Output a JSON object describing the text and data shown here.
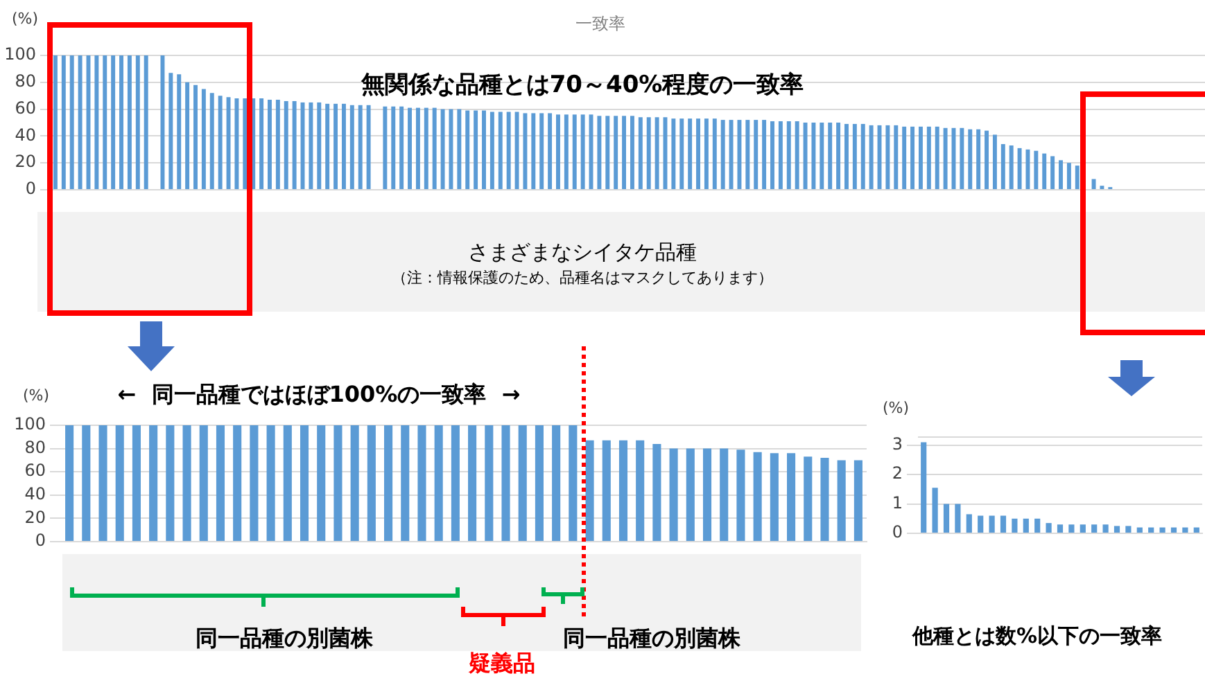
{
  "chart_data": [
    {
      "type": "bar",
      "title": "一致率",
      "ylabel": "(%)",
      "categories": [
        null,
        null,
        null,
        null,
        null,
        null,
        null,
        null,
        null,
        null,
        null,
        null,
        null,
        null,
        null,
        null,
        null,
        null,
        null,
        null,
        null,
        null,
        null,
        null,
        null,
        null,
        null,
        null,
        null,
        null,
        null,
        null,
        null,
        null,
        null,
        null,
        null,
        null,
        null,
        null,
        null,
        null,
        null,
        null,
        null,
        null,
        null,
        null,
        null,
        null,
        null,
        null,
        null,
        null,
        null,
        null,
        null,
        null,
        null,
        null,
        null,
        null,
        null,
        null,
        null,
        null,
        null,
        null,
        null,
        null,
        null,
        null,
        null,
        null,
        null,
        null,
        null,
        null,
        null,
        null,
        null,
        null,
        null,
        null,
        null,
        null,
        null,
        null,
        null,
        null,
        null,
        null,
        null,
        null,
        null,
        null,
        null,
        null,
        null,
        null,
        null,
        null,
        null,
        null,
        null,
        null,
        null,
        null,
        null,
        null,
        null,
        null,
        null,
        null,
        null,
        null,
        null,
        null,
        null,
        null,
        null,
        null,
        null,
        null,
        null,
        null,
        null,
        null,
        null,
        null,
        null,
        null,
        null,
        null,
        null,
        null,
        null,
        null,
        null,
        null
      ],
      "values": [
        100,
        100,
        100,
        100,
        100,
        100,
        100,
        100,
        100,
        100,
        100,
        100,
        null,
        100,
        87,
        86,
        80,
        78,
        75,
        72,
        70,
        69,
        68,
        68,
        68,
        68,
        67,
        67,
        66,
        66,
        65,
        65,
        65,
        64,
        64,
        64,
        63,
        63,
        63,
        null,
        62,
        62,
        62,
        61,
        61,
        61,
        61,
        60,
        60,
        60,
        59,
        59,
        59,
        58,
        58,
        58,
        58,
        57,
        57,
        57,
        57,
        56,
        56,
        56,
        56,
        56,
        55,
        55,
        55,
        55,
        55,
        54,
        54,
        54,
        54,
        53,
        53,
        53,
        53,
        53,
        53,
        52,
        52,
        52,
        52,
        52,
        52,
        51,
        51,
        51,
        51,
        50,
        50,
        50,
        50,
        50,
        49,
        49,
        49,
        48,
        48,
        48,
        48,
        47,
        47,
        47,
        47,
        47,
        46,
        46,
        46,
        45,
        45,
        44,
        41,
        34,
        33,
        31,
        30,
        29,
        27,
        25,
        22,
        20,
        18,
        null,
        8,
        3,
        2,
        null,
        0,
        0,
        0,
        0,
        0,
        0,
        0,
        0,
        0,
        0
      ],
      "color": "#5b9bd5",
      "ylim": [
        0,
        100
      ],
      "yticks": [
        0,
        20,
        40,
        60,
        80,
        100
      ],
      "grid": "y",
      "annotations": [
        "無関係な品種とは70～40%程度の一致率",
        "さまざまなシイタケ品種",
        "（注：情報保護のため、品種名はマスクしてあります）"
      ]
    },
    {
      "type": "bar",
      "title": "←  同一品種ではほぼ100%の一致率  →",
      "ylabel": "(%)",
      "categories": [
        null,
        null,
        null,
        null,
        null,
        null,
        null,
        null,
        null,
        null,
        null,
        null,
        null,
        null,
        null,
        null,
        null,
        null,
        null,
        null,
        null,
        null,
        null,
        null,
        null,
        null,
        null,
        null,
        null,
        null,
        null,
        null,
        null,
        null,
        null,
        null,
        null,
        null,
        null,
        null,
        null,
        null,
        null,
        null,
        null,
        null,
        null,
        null
      ],
      "values": [
        100,
        100,
        100,
        100,
        100,
        100,
        100,
        100,
        100,
        100,
        100,
        100,
        100,
        100,
        100,
        100,
        100,
        100,
        100,
        100,
        100,
        100,
        100,
        100,
        100,
        100,
        100,
        100,
        100,
        100,
        100,
        87,
        87,
        87,
        87,
        84,
        80,
        80,
        80,
        80,
        79,
        77,
        76,
        76,
        73,
        72,
        70,
        70
      ],
      "color": "#5b9bd5",
      "ylim": [
        0,
        100
      ],
      "yticks": [
        0,
        20,
        40,
        60,
        80,
        100
      ],
      "grid": "y",
      "annotations": [
        "同一品種の別菌株",
        "疑義品",
        "同一品種の別菌株"
      ]
    },
    {
      "type": "bar",
      "ylabel": "(%)",
      "categories": [
        null,
        null,
        null,
        null,
        null,
        null,
        null,
        null,
        null,
        null,
        null,
        null,
        null,
        null,
        null,
        null,
        null,
        null,
        null,
        null,
        null,
        null,
        null,
        null,
        null
      ],
      "values": [
        3.1,
        1.55,
        1.0,
        1.0,
        0.65,
        0.6,
        0.6,
        0.6,
        0.5,
        0.5,
        0.5,
        0.35,
        0.3,
        0.3,
        0.3,
        0.3,
        0.3,
        0.25,
        0.25,
        0.2,
        0.2,
        0.2,
        0.2,
        0.2,
        0.2
      ],
      "color": "#5b9bd5",
      "ylim": [
        0,
        3.3
      ],
      "yticks": [
        0,
        1,
        2,
        3
      ],
      "grid": "y",
      "annotations": [
        "他種とは数%以下の一致率"
      ]
    }
  ]
}
